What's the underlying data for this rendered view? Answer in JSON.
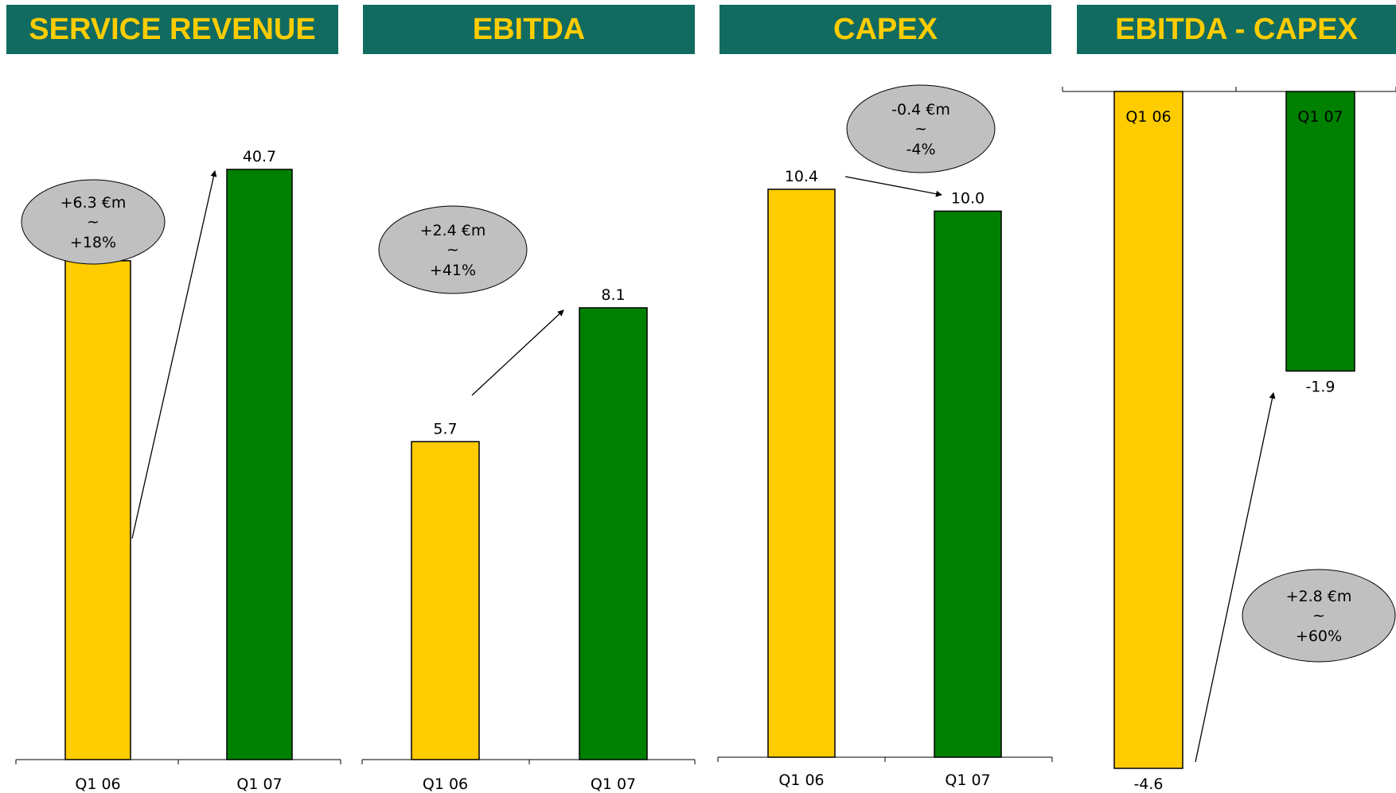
{
  "colors": {
    "q1_06": "#ffcc00",
    "q1_07": "#008000",
    "header_bg": "#116b60",
    "header_text": "#ffcc00",
    "bubble": "#c0c0c0"
  },
  "headers": [
    "SERVICE REVENUE",
    "EBITDA",
    "CAPEX",
    "EBITDA - CAPEX"
  ],
  "chart_data": [
    {
      "type": "bar",
      "title": "SERVICE REVENUE",
      "categories": [
        "Q1 06",
        "Q1 07"
      ],
      "values": [
        34.4,
        40.7
      ],
      "value_labels": [
        "34.4",
        "40.7"
      ],
      "change": {
        "line1": "+6.3 €m",
        "line2": "~",
        "line3": "+18%"
      },
      "ylim": [
        0,
        40.7
      ],
      "grid": false
    },
    {
      "type": "bar",
      "title": "EBITDA",
      "categories": [
        "Q1 06",
        "Q1 07"
      ],
      "values": [
        5.7,
        8.1
      ],
      "value_labels": [
        "5.7",
        "8.1"
      ],
      "change": {
        "line1": "+2.4 €m",
        "line2": "~",
        "line3": "+41%"
      },
      "ylim": [
        0,
        8.1
      ],
      "grid": false
    },
    {
      "type": "bar",
      "title": "CAPEX",
      "categories": [
        "Q1 06",
        "Q1 07"
      ],
      "values": [
        10.4,
        10.0
      ],
      "value_labels": [
        "10.4",
        "10.0"
      ],
      "change": {
        "line1": "-0.4 €m",
        "line2": "~",
        "line3": "-4%"
      },
      "ylim": [
        0,
        10.4
      ],
      "grid": false
    },
    {
      "type": "bar",
      "title": "EBITDA - CAPEX",
      "categories": [
        "Q1 06",
        "Q1 07"
      ],
      "values": [
        -4.6,
        -1.9
      ],
      "value_labels": [
        "-4.6",
        "-1.9"
      ],
      "change": {
        "line1": "+2.8 €m",
        "line2": "~",
        "line3": "+60%"
      },
      "ylim": [
        -4.6,
        0
      ],
      "grid": false
    }
  ]
}
